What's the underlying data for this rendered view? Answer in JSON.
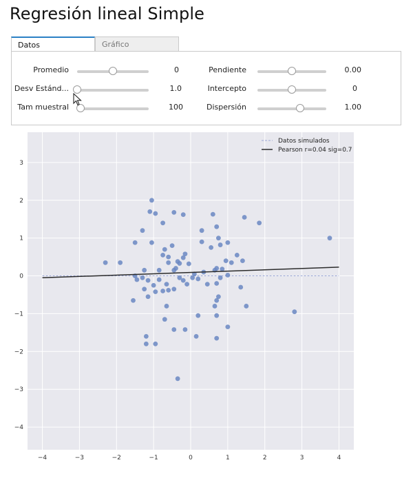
{
  "title": "Regresión lineal Simple",
  "tabs": [
    {
      "label": "Datos",
      "active": true
    },
    {
      "label": "Gráfico",
      "active": false
    }
  ],
  "controls": {
    "promedio": {
      "label": "Promedio",
      "value": "0",
      "level": 0.5
    },
    "desv": {
      "label": "Desv Estánd...",
      "value": "1.0",
      "level": 0.0
    },
    "tam": {
      "label": "Tam muestral",
      "value": "100",
      "level": 0.05
    },
    "pendiente": {
      "label": "Pendiente",
      "value": "0.00",
      "level": 0.5
    },
    "intercepto": {
      "label": "Intercepto",
      "value": "0",
      "level": 0.5
    },
    "dispersion": {
      "label": "Dispersión",
      "value": "1.00",
      "level": 0.62
    }
  },
  "colors": {
    "accent": "#2a80c4",
    "plot_bg": "#e8e8ee",
    "point": "#6a87c2",
    "line": "#2b2b2b",
    "dashed": "#9aa6d6"
  },
  "chart_data": {
    "type": "scatter",
    "xlim": [
      -4.4,
      4.4
    ],
    "ylim": [
      -4.6,
      3.8
    ],
    "xticks": [
      -4,
      -3,
      -2,
      -1,
      0,
      1,
      2,
      3,
      4
    ],
    "yticks": [
      -4,
      -3,
      -2,
      -1,
      0,
      1,
      2,
      3
    ],
    "grid": true,
    "legend_position": "top-right",
    "legend": [
      {
        "label": "Datos simulados",
        "style": "dashed"
      },
      {
        "label": "Pearson r=0.04 sig=0.7",
        "style": "solid"
      }
    ],
    "dashed_line": {
      "x": [
        -4,
        4
      ],
      "y": [
        0,
        0
      ]
    },
    "fit_line": {
      "x": [
        -4,
        4
      ],
      "y": [
        -0.05,
        0.23
      ]
    },
    "points": [
      [
        -1.05,
        2.0
      ],
      [
        -1.1,
        1.7
      ],
      [
        -0.95,
        1.65
      ],
      [
        -0.45,
        1.68
      ],
      [
        -0.2,
        1.62
      ],
      [
        0.6,
        1.63
      ],
      [
        -1.3,
        1.2
      ],
      [
        -0.75,
        1.4
      ],
      [
        0.3,
        1.2
      ],
      [
        0.7,
        1.3
      ],
      [
        1.45,
        1.55
      ],
      [
        1.85,
        1.4
      ],
      [
        3.75,
        1.0
      ],
      [
        -1.5,
        0.88
      ],
      [
        -1.05,
        0.88
      ],
      [
        -0.5,
        0.8
      ],
      [
        0.3,
        0.9
      ],
      [
        0.75,
        1.0
      ],
      [
        0.8,
        0.82
      ],
      [
        1.0,
        0.88
      ],
      [
        0.55,
        0.75
      ],
      [
        -0.7,
        0.7
      ],
      [
        -0.75,
        0.55
      ],
      [
        -0.6,
        0.5
      ],
      [
        -0.15,
        0.58
      ],
      [
        -0.2,
        0.48
      ],
      [
        -0.35,
        0.38
      ],
      [
        -0.3,
        0.33
      ],
      [
        -0.05,
        0.32
      ],
      [
        1.25,
        0.55
      ],
      [
        1.4,
        0.4
      ],
      [
        1.1,
        0.35
      ],
      [
        0.95,
        0.4
      ],
      [
        -2.3,
        0.35
      ],
      [
        -1.9,
        0.35
      ],
      [
        -1.25,
        0.15
      ],
      [
        -0.85,
        0.15
      ],
      [
        -0.45,
        0.15
      ],
      [
        -0.4,
        0.2
      ],
      [
        -0.6,
        0.35
      ],
      [
        0.7,
        0.2
      ],
      [
        0.85,
        0.18
      ],
      [
        0.65,
        0.15
      ],
      [
        0.35,
        0.1
      ],
      [
        0.1,
        0.05
      ],
      [
        -1.5,
        0.0
      ],
      [
        -1.45,
        -0.1
      ],
      [
        -1.3,
        -0.05
      ],
      [
        -1.15,
        -0.12
      ],
      [
        -0.85,
        -0.1
      ],
      [
        -0.3,
        -0.05
      ],
      [
        -0.2,
        -0.12
      ],
      [
        0.05,
        -0.05
      ],
      [
        0.2,
        -0.08
      ],
      [
        0.8,
        -0.05
      ],
      [
        1.0,
        0.02
      ],
      [
        -1.0,
        -0.25
      ],
      [
        -0.65,
        -0.22
      ],
      [
        -0.1,
        -0.22
      ],
      [
        0.45,
        -0.22
      ],
      [
        0.7,
        -0.2
      ],
      [
        1.35,
        -0.3
      ],
      [
        -1.25,
        -0.35
      ],
      [
        -0.95,
        -0.42
      ],
      [
        -0.75,
        -0.4
      ],
      [
        -0.6,
        -0.38
      ],
      [
        -0.45,
        -0.35
      ],
      [
        0.75,
        -0.55
      ],
      [
        0.7,
        -0.65
      ],
      [
        0.65,
        -0.8
      ],
      [
        -1.55,
        -0.65
      ],
      [
        -1.15,
        -0.55
      ],
      [
        -0.65,
        -0.8
      ],
      [
        1.5,
        -0.8
      ],
      [
        -0.7,
        -1.15
      ],
      [
        0.2,
        -1.05
      ],
      [
        0.7,
        -1.05
      ],
      [
        -0.45,
        -1.42
      ],
      [
        -0.15,
        -1.42
      ],
      [
        1.0,
        -1.35
      ],
      [
        2.8,
        -0.95
      ],
      [
        -1.2,
        -1.6
      ],
      [
        -1.2,
        -1.8
      ],
      [
        -0.95,
        -1.8
      ],
      [
        0.15,
        -1.6
      ],
      [
        0.7,
        -1.65
      ],
      [
        -0.35,
        -2.72
      ]
    ]
  }
}
